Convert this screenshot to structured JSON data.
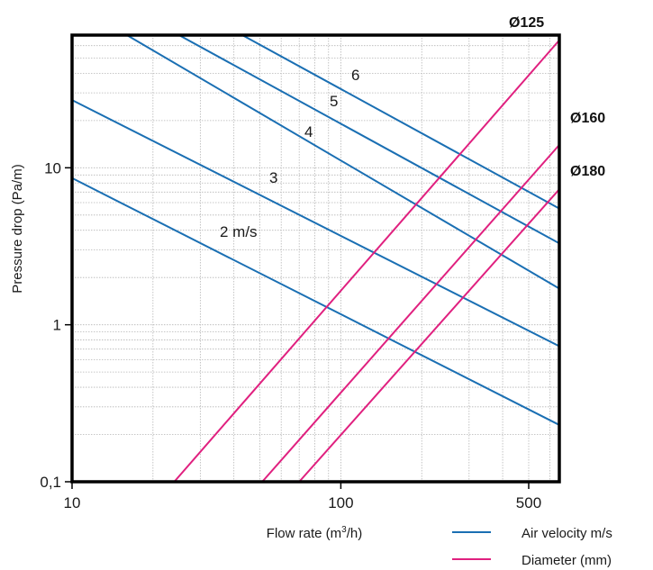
{
  "chart_data": {
    "type": "line",
    "x_scale": "log",
    "y_scale": "log",
    "xlim": [
      10,
      650
    ],
    "ylim": [
      0.1,
      70
    ],
    "grid": true,
    "xlabel_main": "Flow rate (m",
    "xlabel_sup": "3",
    "xlabel_tail": "/h)",
    "ylabel": "Pressure drop (Pa/m)",
    "x_ticks": [
      {
        "value": 10,
        "label": "10"
      },
      {
        "value": 100,
        "label": "100"
      },
      {
        "value": 500,
        "label": "500"
      }
    ],
    "y_ticks": [
      {
        "value": 0.1,
        "label": "0,1"
      },
      {
        "value": 1,
        "label": "1"
      },
      {
        "value": 10,
        "label": "10"
      }
    ],
    "velocity_series": [
      {
        "label": "2 m/s",
        "points": [
          [
            10,
            8.6
          ],
          [
            650,
            0.23
          ]
        ]
      },
      {
        "label": "3",
        "points": [
          [
            10,
            27
          ],
          [
            650,
            0.73
          ]
        ]
      },
      {
        "label": "4",
        "points": [
          [
            16,
            70
          ],
          [
            650,
            1.7
          ]
        ]
      },
      {
        "label": "5",
        "points": [
          [
            25,
            70
          ],
          [
            650,
            3.3
          ]
        ]
      },
      {
        "label": "6",
        "points": [
          [
            43,
            70
          ],
          [
            650,
            5.5
          ]
        ]
      }
    ],
    "diameter_series": [
      {
        "label": "Ø125",
        "points": [
          [
            24,
            0.1
          ],
          [
            650,
            65
          ]
        ]
      },
      {
        "label": "Ø160",
        "points": [
          [
            51,
            0.1
          ],
          [
            650,
            14
          ]
        ]
      },
      {
        "label": "Ø180",
        "points": [
          [
            70,
            0.1
          ],
          [
            650,
            7.3
          ]
        ]
      }
    ],
    "legend": [
      {
        "label": "Air velocity m/s",
        "color": "#1a6fb3"
      },
      {
        "label": "Diameter (mm)",
        "color": "#e0207f"
      }
    ],
    "colors": {
      "velocity": "#1a6fb3",
      "diameter": "#e0207f",
      "grid": "#b5b5b5"
    }
  }
}
